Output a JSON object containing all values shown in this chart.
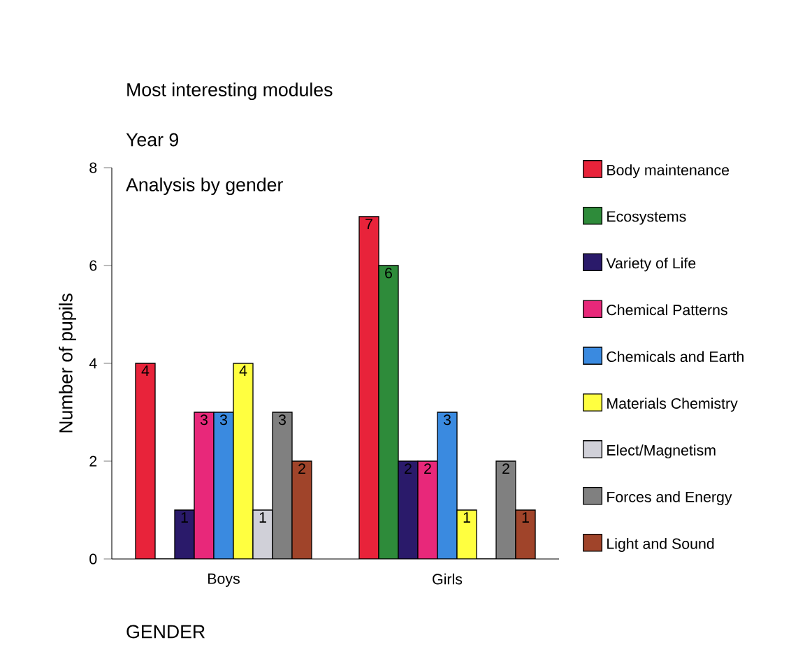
{
  "chart_data": {
    "type": "bar",
    "title": "Most interesting modules",
    "subtitle": "Year 9",
    "annotations": [
      "Analysis by gender"
    ],
    "xlabel": "GENDER",
    "ylabel": "Number of pupils",
    "categories": [
      "Boys",
      "Girls"
    ],
    "ylim": [
      0,
      8
    ],
    "yticks": [
      0,
      2,
      4,
      6,
      8
    ],
    "grid": false,
    "legend": "right",
    "series": [
      {
        "name": "Body maintenance",
        "color": "#e8233a",
        "values": [
          4,
          7
        ],
        "value_labels": [
          "4",
          "7"
        ]
      },
      {
        "name": "Ecosystems",
        "color": "#2e8b3a",
        "values": [
          0,
          6
        ],
        "value_labels": [
          null,
          "6"
        ]
      },
      {
        "name": "Variety of Life",
        "color": "#2a1a6a",
        "values": [
          1,
          2
        ],
        "value_labels": [
          "1",
          "2"
        ]
      },
      {
        "name": "Chemical Patterns",
        "color": "#e8287a",
        "values": [
          3,
          2
        ],
        "value_labels": [
          "3",
          "2"
        ]
      },
      {
        "name": "Chemicals and Earth",
        "color": "#3a8ae0",
        "values": [
          3,
          3
        ],
        "value_labels": [
          "3",
          "3"
        ]
      },
      {
        "name": "Materials Chemistry",
        "color": "#ffff40",
        "values": [
          4,
          1
        ],
        "value_labels": [
          "4",
          "1"
        ]
      },
      {
        "name": "Elect/Magnetism",
        "color": "#d0d0d8",
        "values": [
          1,
          0
        ],
        "value_labels": [
          "1",
          null
        ]
      },
      {
        "name": "Forces and Energy",
        "color": "#808080",
        "values": [
          3,
          2
        ],
        "value_labels": [
          "3",
          "2"
        ]
      },
      {
        "name": "Light and Sound",
        "color": "#a0442a",
        "values": [
          2,
          1
        ],
        "value_labels": [
          "2",
          "1"
        ]
      }
    ]
  }
}
